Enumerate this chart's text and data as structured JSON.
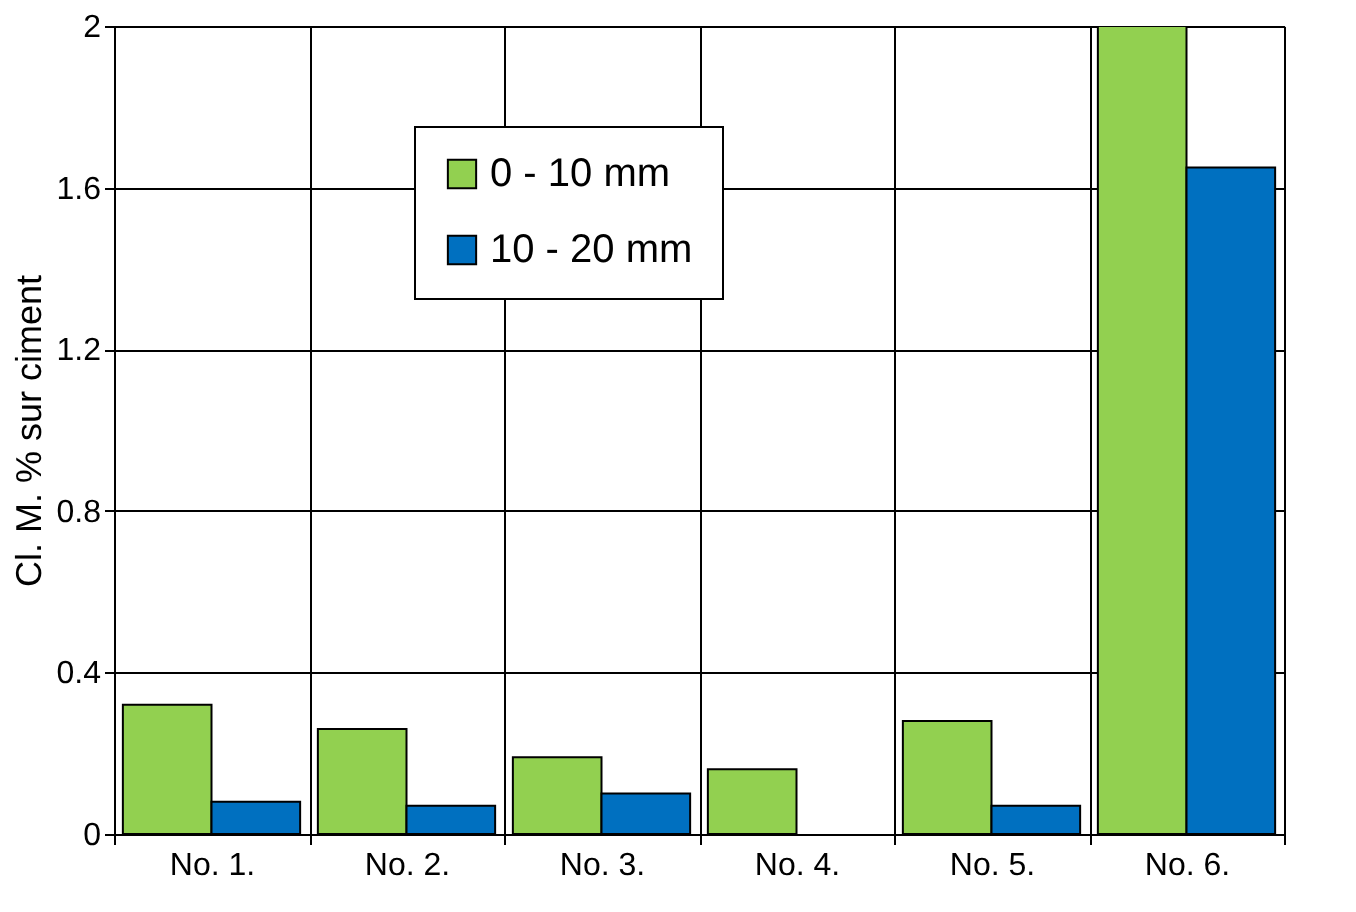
{
  "chart_data": {
    "type": "bar",
    "ylabel": "Cl. M. % sur ciment",
    "categories": [
      "No. 1.",
      "No. 2.",
      "No. 3.",
      "No. 4.",
      "No. 5.",
      "No. 6."
    ],
    "series": [
      {
        "name": "0 - 10 mm",
        "color": "#92d050",
        "values": [
          0.32,
          0.26,
          0.19,
          0.16,
          0.28,
          2.0
        ]
      },
      {
        "name": "10 - 20 mm",
        "color": "#0070c0",
        "values": [
          0.08,
          0.07,
          0.1,
          null,
          0.07,
          1.65
        ]
      }
    ],
    "ylim": [
      0,
      2
    ],
    "yticks": [
      0,
      0.4,
      0.8,
      1.2,
      1.6,
      2
    ],
    "grid": true,
    "legend": "top"
  }
}
